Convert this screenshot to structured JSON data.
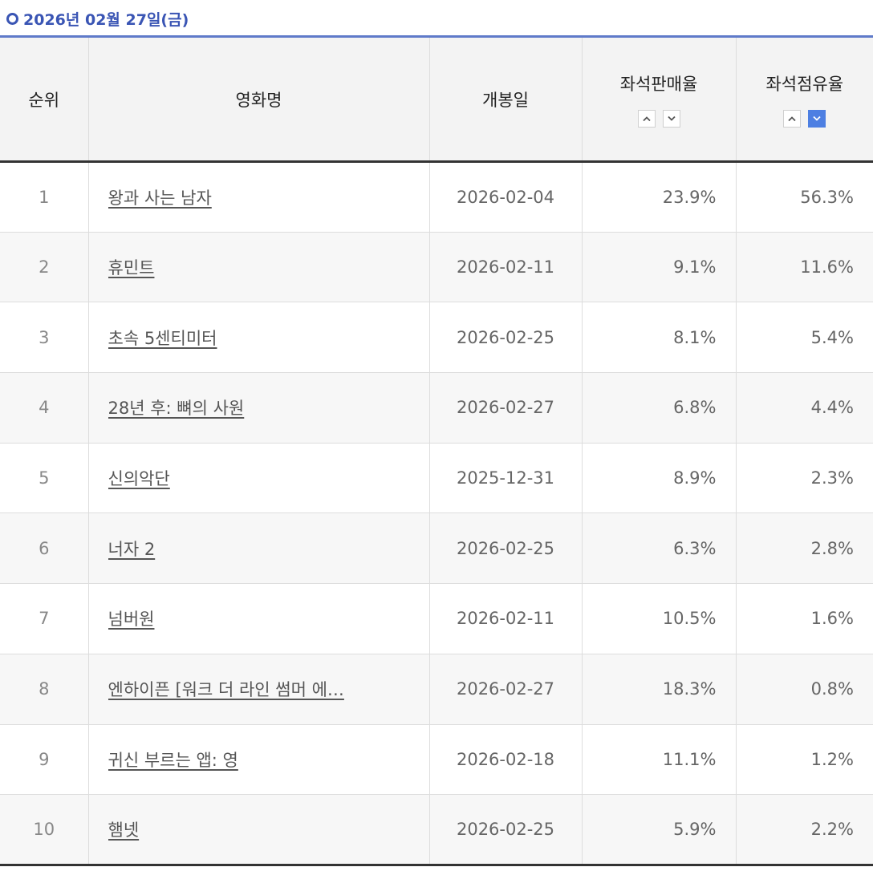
{
  "heading": {
    "date_label": "2026년 02월 27일(금)"
  },
  "table": {
    "headers": {
      "rank": "순위",
      "title": "영화명",
      "release": "개봉일",
      "sale_rate": "좌석판매율",
      "occupancy": "좌석점유율"
    },
    "sort": {
      "active_column": "occupancy",
      "active_direction": "down"
    },
    "rows": [
      {
        "rank": "1",
        "title": "왕과 사는 남자",
        "release": "2026-02-04",
        "sale_rate": "23.9%",
        "occupancy": "56.3%"
      },
      {
        "rank": "2",
        "title": "휴민트",
        "release": "2026-02-11",
        "sale_rate": "9.1%",
        "occupancy": "11.6%"
      },
      {
        "rank": "3",
        "title": "초속 5센티미터",
        "release": "2026-02-25",
        "sale_rate": "8.1%",
        "occupancy": "5.4%"
      },
      {
        "rank": "4",
        "title": "28년 후: 뼈의 사원",
        "release": "2026-02-27",
        "sale_rate": "6.8%",
        "occupancy": "4.4%"
      },
      {
        "rank": "5",
        "title": "신의악단",
        "release": "2025-12-31",
        "sale_rate": "8.9%",
        "occupancy": "2.3%"
      },
      {
        "rank": "6",
        "title": "너자 2",
        "release": "2026-02-25",
        "sale_rate": "6.3%",
        "occupancy": "2.8%"
      },
      {
        "rank": "7",
        "title": "넘버원",
        "release": "2026-02-11",
        "sale_rate": "10.5%",
        "occupancy": "1.6%"
      },
      {
        "rank": "8",
        "title": "엔하이픈 [워크 더 라인 썸머 에…",
        "release": "2026-02-27",
        "sale_rate": "18.3%",
        "occupancy": "0.8%"
      },
      {
        "rank": "9",
        "title": "귀신 부르는 앱: 영",
        "release": "2026-02-18",
        "sale_rate": "11.1%",
        "occupancy": "1.2%"
      },
      {
        "rank": "10",
        "title": "햄넷",
        "release": "2026-02-25",
        "sale_rate": "5.9%",
        "occupancy": "2.2%"
      }
    ]
  }
}
